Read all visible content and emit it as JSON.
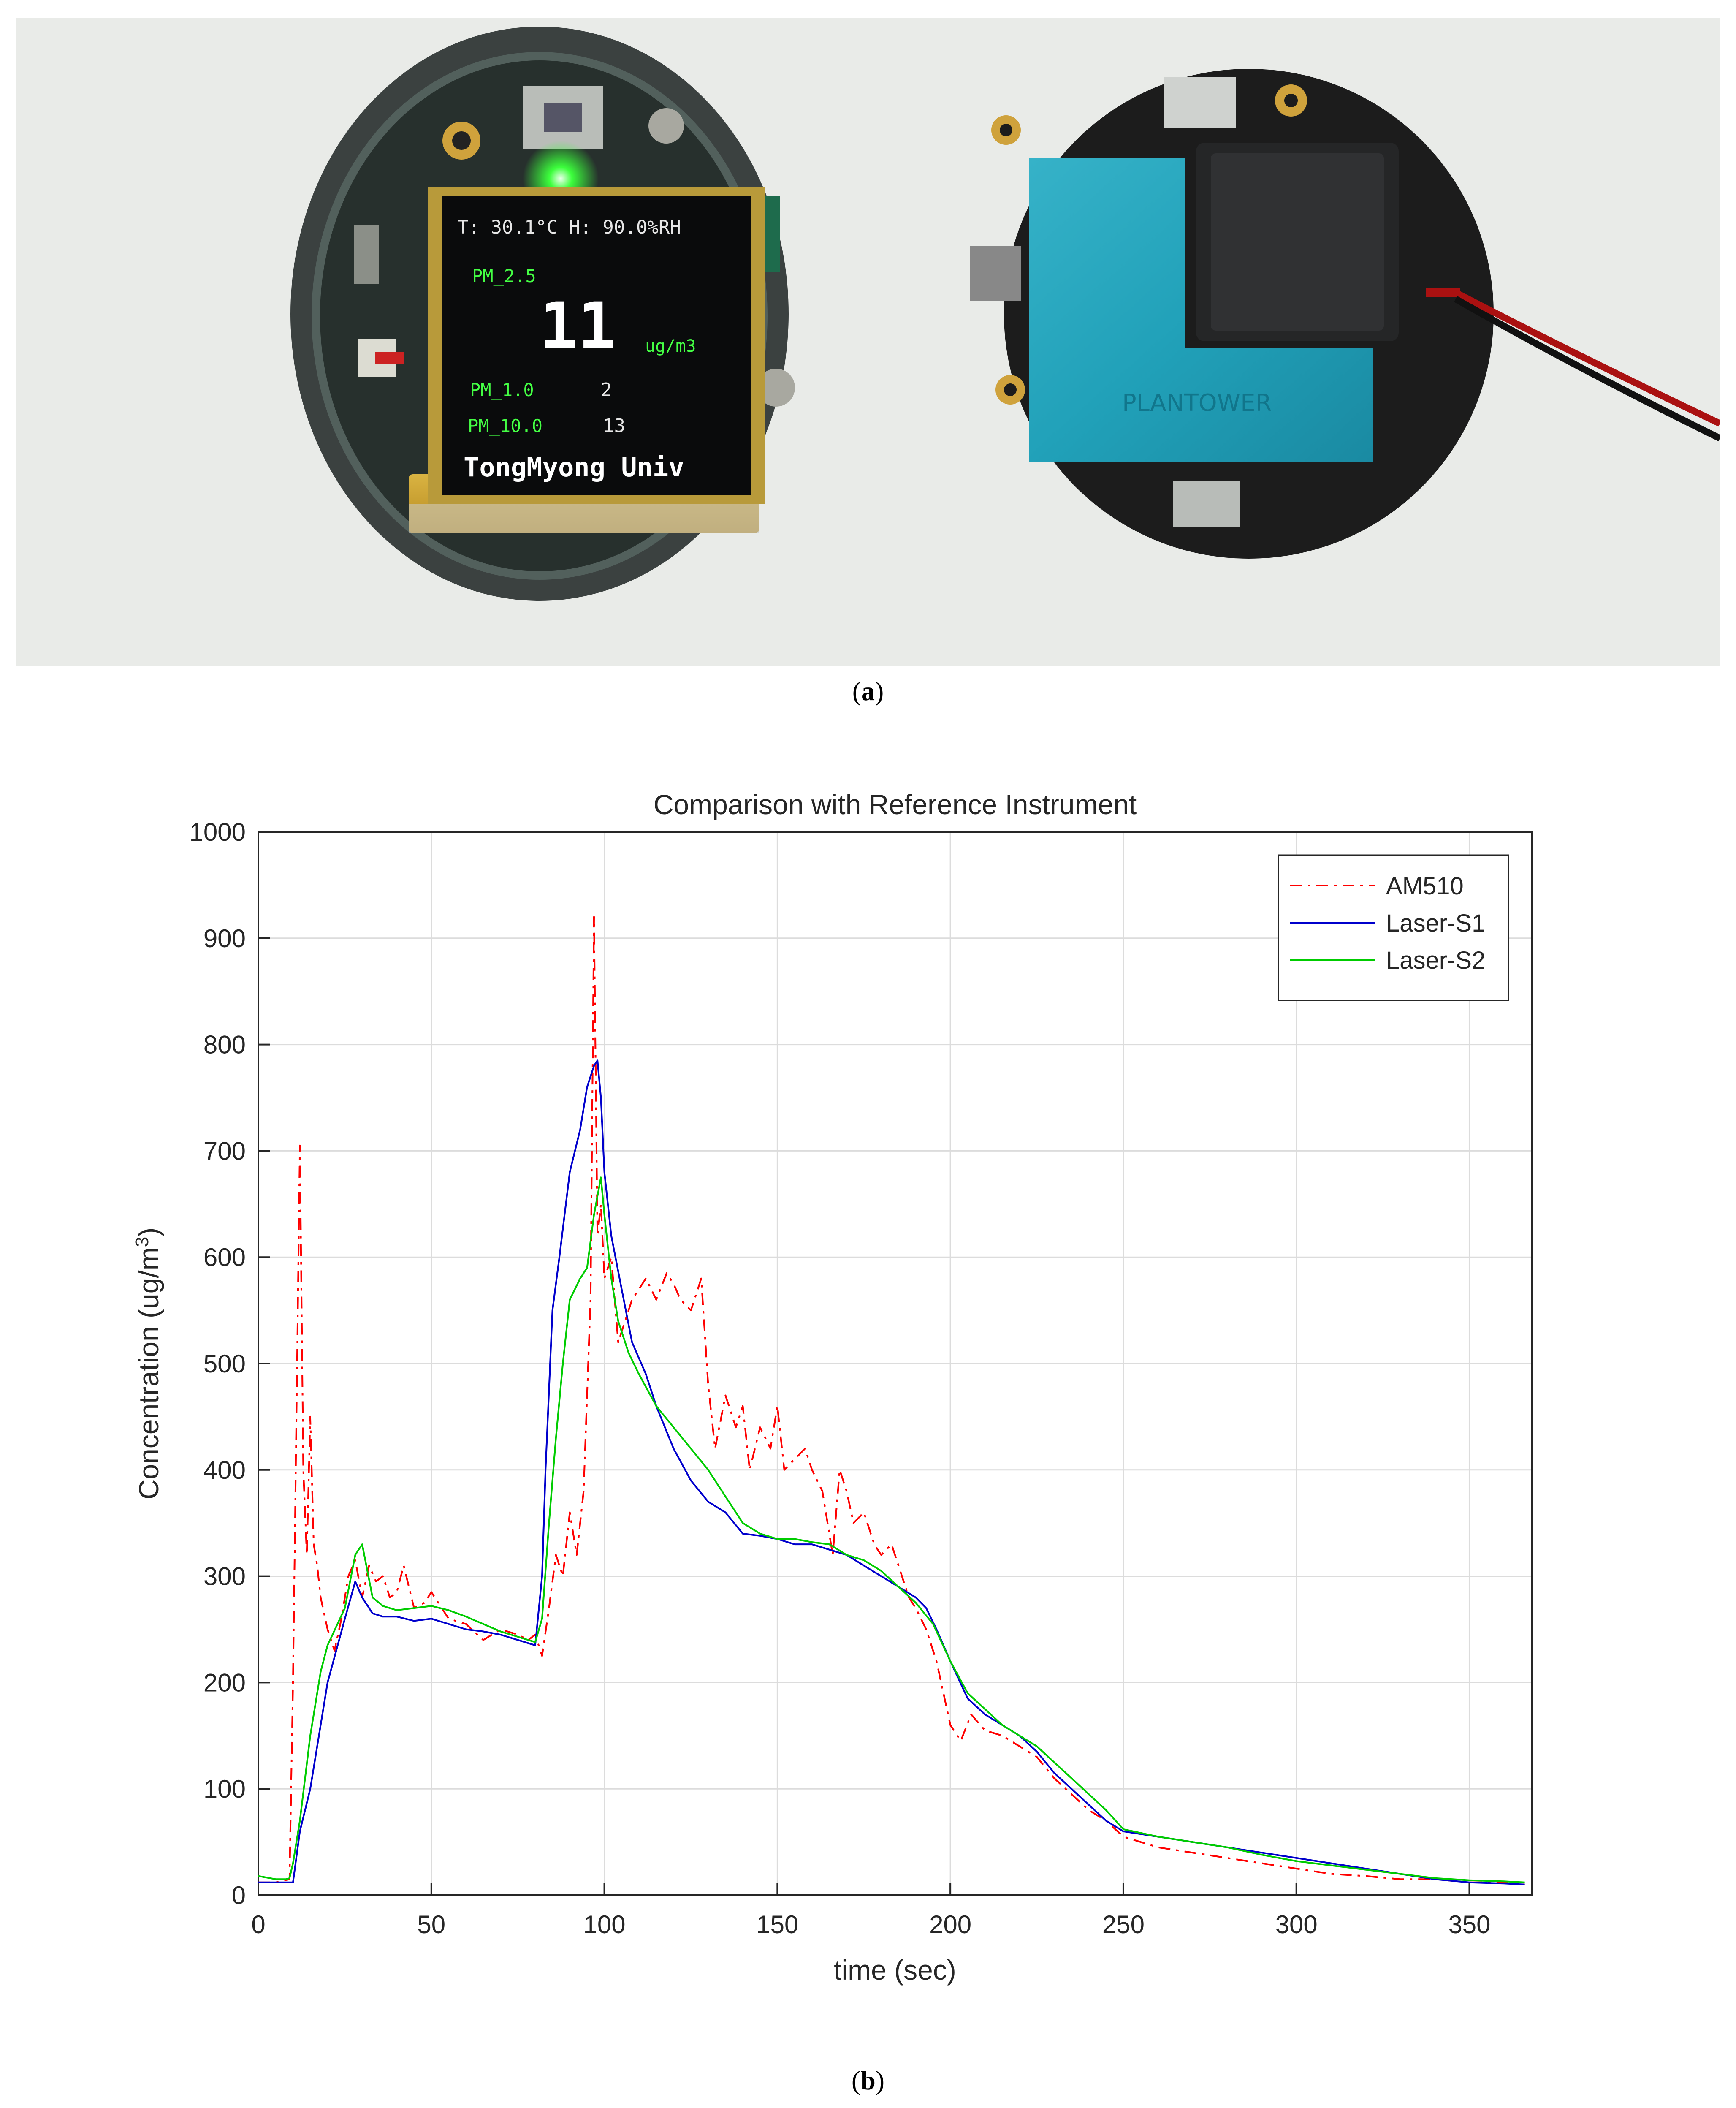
{
  "photo": {
    "display": {
      "line1": "T: 30.1°C H: 90.0%RH",
      "pm25_label": "PM_2.5",
      "pm25_value": "11",
      "unit": "ug/m3",
      "pm10_label": "PM_1.0",
      "pm10_value": "2",
      "pm100_label": "PM_10.0",
      "pm100_value": "13",
      "footer": "TongMyong Univ"
    },
    "sensor_brand": "PLANTOWER"
  },
  "captions": {
    "a_open": "(",
    "a_letter": "a",
    "a_close": ")",
    "b_open": "(",
    "b_letter": "b",
    "b_close": ")"
  },
  "chart_data": {
    "type": "line",
    "title": "Comparison with Reference Instrument",
    "xlabel": "time (sec)",
    "ylabel_main": "Concentration (ug/m",
    "ylabel_sup": "3",
    "ylabel_end": ")",
    "xlim": [
      0,
      368
    ],
    "ylim": [
      0,
      1000
    ],
    "xticks": [
      0,
      50,
      100,
      150,
      200,
      250,
      300,
      350
    ],
    "yticks": [
      0,
      100,
      200,
      300,
      400,
      500,
      600,
      700,
      800,
      900,
      1000
    ],
    "grid": true,
    "legend_position": "top-right",
    "series": [
      {
        "name": "AM510",
        "color": "#ff0000",
        "style": "dashdot",
        "x": [
          0,
          5,
          9,
          10,
          11,
          12,
          13,
          14,
          15,
          16,
          17,
          18,
          20,
          22,
          24,
          26,
          28,
          30,
          32,
          34,
          36,
          38,
          40,
          42,
          45,
          48,
          50,
          55,
          60,
          65,
          70,
          75,
          78,
          80,
          82,
          84,
          86,
          88,
          90,
          92,
          94,
          96,
          97,
          98,
          99,
          100,
          102,
          104,
          106,
          108,
          110,
          112,
          115,
          118,
          120,
          122,
          125,
          128,
          130,
          132,
          135,
          138,
          140,
          142,
          145,
          148,
          150,
          152,
          155,
          158,
          160,
          163,
          166,
          168,
          170,
          172,
          175,
          178,
          180,
          183,
          186,
          188,
          190,
          193,
          196,
          200,
          203,
          206,
          210,
          215,
          220,
          225,
          230,
          235,
          240,
          245,
          250,
          255,
          260,
          270,
          280,
          290,
          300,
          310,
          320,
          330,
          340,
          350,
          360,
          366
        ],
        "y": [
          12,
          12,
          15,
          200,
          450,
          705,
          400,
          320,
          450,
          330,
          310,
          280,
          250,
          230,
          260,
          300,
          315,
          280,
          310,
          295,
          300,
          280,
          285,
          310,
          270,
          275,
          285,
          260,
          255,
          240,
          250,
          245,
          240,
          245,
          225,
          270,
          320,
          300,
          360,
          320,
          380,
          560,
          920,
          620,
          650,
          580,
          600,
          520,
          540,
          560,
          570,
          580,
          560,
          585,
          575,
          560,
          550,
          580,
          480,
          420,
          470,
          440,
          460,
          400,
          440,
          420,
          460,
          400,
          410,
          420,
          400,
          380,
          320,
          400,
          380,
          350,
          360,
          330,
          320,
          330,
          300,
          280,
          270,
          250,
          220,
          160,
          145,
          170,
          155,
          150,
          140,
          130,
          110,
          95,
          80,
          70,
          55,
          50,
          45,
          40,
          35,
          30,
          25,
          20,
          18,
          15,
          15,
          12,
          12,
          10
        ]
      },
      {
        "name": "Laser-S1",
        "color": "#0000cc",
        "style": "solid",
        "x": [
          0,
          5,
          8,
          9,
          10,
          12,
          15,
          20,
          25,
          28,
          30,
          33,
          36,
          40,
          45,
          50,
          55,
          60,
          65,
          70,
          75,
          80,
          82,
          83,
          85,
          87,
          90,
          93,
          95,
          97,
          98,
          99,
          100,
          102,
          105,
          108,
          112,
          115,
          120,
          125,
          130,
          135,
          140,
          145,
          150,
          155,
          160,
          165,
          170,
          175,
          180,
          185,
          190,
          193,
          196,
          200,
          205,
          210,
          215,
          220,
          225,
          230,
          235,
          240,
          245,
          250,
          260,
          270,
          280,
          290,
          300,
          310,
          320,
          330,
          340,
          350,
          360,
          366
        ],
        "y": [
          12,
          12,
          12,
          12,
          12,
          60,
          100,
          200,
          260,
          295,
          280,
          265,
          262,
          262,
          258,
          260,
          255,
          250,
          248,
          245,
          240,
          235,
          300,
          400,
          550,
          600,
          680,
          720,
          760,
          780,
          785,
          750,
          680,
          620,
          570,
          520,
          490,
          460,
          420,
          390,
          370,
          360,
          340,
          338,
          335,
          330,
          330,
          325,
          320,
          310,
          300,
          290,
          280,
          270,
          250,
          220,
          185,
          170,
          160,
          150,
          135,
          115,
          100,
          85,
          70,
          60,
          55,
          50,
          45,
          40,
          35,
          30,
          25,
          20,
          15,
          12,
          11,
          10
        ]
      },
      {
        "name": "Laser-S2",
        "color": "#00cc00",
        "style": "solid",
        "x": [
          0,
          5,
          8,
          9,
          10,
          12,
          15,
          18,
          20,
          25,
          28,
          30,
          33,
          36,
          40,
          45,
          50,
          55,
          60,
          65,
          70,
          75,
          80,
          82,
          84,
          86,
          88,
          90,
          93,
          95,
          97,
          99,
          100,
          102,
          104,
          107,
          110,
          115,
          120,
          125,
          130,
          135,
          140,
          145,
          150,
          155,
          160,
          165,
          170,
          175,
          180,
          185,
          190,
          195,
          200,
          205,
          210,
          215,
          220,
          225,
          230,
          235,
          240,
          245,
          250,
          260,
          270,
          280,
          290,
          300,
          310,
          320,
          330,
          340,
          350,
          360,
          366
        ],
        "y": [
          18,
          15,
          15,
          16,
          30,
          70,
          150,
          210,
          235,
          270,
          320,
          330,
          280,
          272,
          268,
          270,
          272,
          268,
          262,
          255,
          248,
          243,
          238,
          260,
          350,
          430,
          500,
          560,
          580,
          590,
          640,
          675,
          640,
          580,
          540,
          510,
          490,
          460,
          440,
          420,
          400,
          375,
          350,
          340,
          335,
          335,
          332,
          330,
          320,
          315,
          305,
          290,
          275,
          255,
          220,
          190,
          175,
          160,
          150,
          140,
          125,
          110,
          95,
          80,
          62,
          55,
          50,
          45,
          38,
          32,
          28,
          24,
          20,
          16,
          14,
          13,
          12
        ]
      }
    ]
  }
}
